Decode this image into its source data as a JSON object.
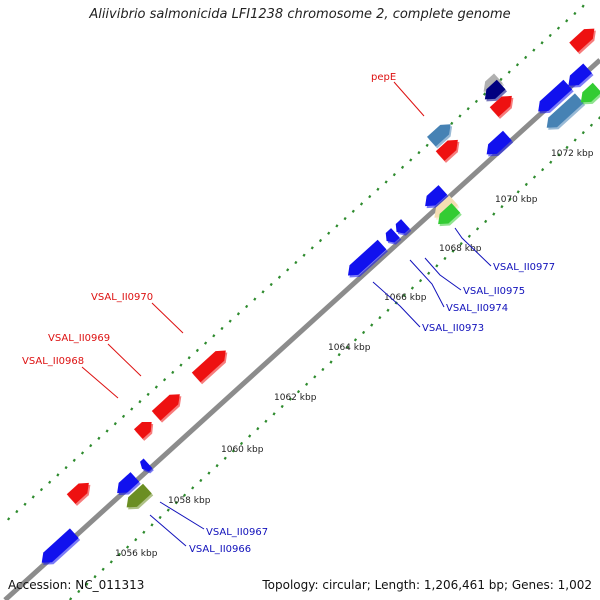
{
  "title": "Aliivibrio salmonicida LFI1238 chromosome 2, complete genome",
  "footer": {
    "accession": "Accession: NC_011313",
    "summary": "Topology: circular; Length: 1,206,461 bp; Genes: 1,002"
  },
  "colors": {
    "backbone": "#8c8c8c",
    "tick_dots": "#2e8b2e",
    "forward_label": "#dd1111",
    "reverse_label": "#1111bb",
    "gene_blue": "#1111ee",
    "gene_red": "#ee1111",
    "gene_steel": "#4682b4",
    "gene_olive": "#6b8e23",
    "gene_green": "#33cc33",
    "gene_tan": "#f5deb3",
    "gene_navy": "#000080",
    "gene_gray": "#b0b0b0"
  },
  "ruler_labels": [
    "1056 kbp",
    "1058 kbp",
    "1060 kbp",
    "1062 kbp",
    "1064 kbp",
    "1066 kbp",
    "1068 kbp",
    "1070 kbp",
    "1072 kbp"
  ],
  "forward_labels": [
    "VSAL_II0968",
    "VSAL_II0969",
    "VSAL_II0970",
    "pepE"
  ],
  "reverse_labels": [
    "VSAL_II0966",
    "VSAL_II0967",
    "VSAL_II0973",
    "VSAL_II0974",
    "VSAL_II0975",
    "VSAL_II0977"
  ],
  "genes": [
    {
      "strand": "+",
      "color": "red"
    },
    {
      "strand": "+",
      "color": "red"
    },
    {
      "strand": "+",
      "color": "red"
    },
    {
      "strand": "+",
      "color": "red"
    },
    {
      "strand": "+",
      "color": "red"
    },
    {
      "strand": "+",
      "color": "steel"
    },
    {
      "strand": "+",
      "color": "red"
    },
    {
      "strand": "+",
      "color": "red"
    },
    {
      "strand": "+",
      "color": "red"
    },
    {
      "strand": "-",
      "color": "blue"
    },
    {
      "strand": "-",
      "color": "blue"
    },
    {
      "strand": "-",
      "color": "blue"
    },
    {
      "strand": "-",
      "color": "olive"
    },
    {
      "strand": "-",
      "color": "blue"
    },
    {
      "strand": "-",
      "color": "blue"
    },
    {
      "strand": "-",
      "color": "blue"
    },
    {
      "strand": "-",
      "color": "blue"
    },
    {
      "strand": "-",
      "color": "tan"
    },
    {
      "strand": "-",
      "color": "green"
    },
    {
      "strand": "-",
      "color": "blue"
    },
    {
      "strand": "-",
      "color": "gray"
    },
    {
      "strand": "-",
      "color": "navy"
    },
    {
      "strand": "-",
      "color": "blue"
    },
    {
      "strand": "-",
      "color": "steel"
    },
    {
      "strand": "-",
      "color": "blue"
    },
    {
      "strand": "-",
      "color": "green"
    }
  ]
}
